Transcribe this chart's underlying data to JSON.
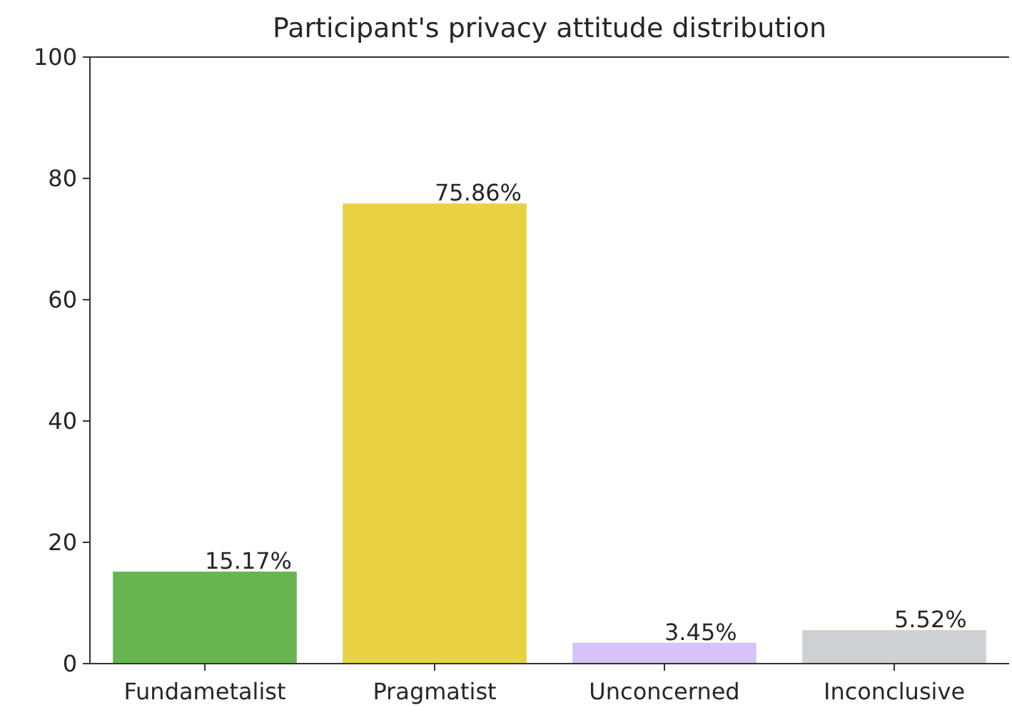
{
  "chart_data": {
    "type": "bar",
    "title": "Participant's privacy attitude distribution",
    "categories": [
      "Fundametalist",
      "Pragmatist",
      "Unconcerned",
      "Inconclusive"
    ],
    "values": [
      15.17,
      75.86,
      3.45,
      5.52
    ],
    "colors": [
      "#66b550",
      "#e8d244",
      "#d5c4f5",
      "#cdd1d4"
    ],
    "value_labels": [
      "15.17%",
      "75.86%",
      "3.45%",
      "5.52%"
    ],
    "ylim": [
      0,
      100
    ],
    "yticks": [
      0,
      20,
      40,
      60,
      80,
      100
    ],
    "grid": false
  }
}
